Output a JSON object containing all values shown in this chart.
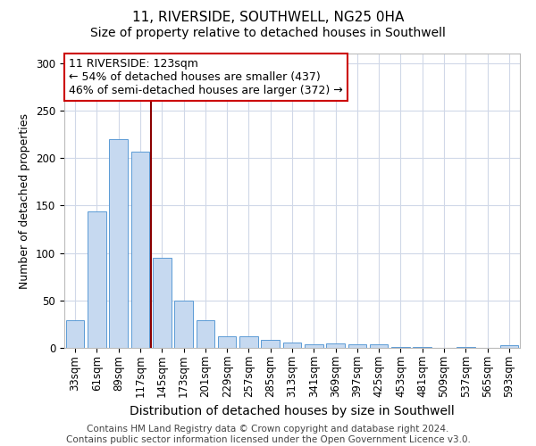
{
  "title": "11, RIVERSIDE, SOUTHWELL, NG25 0HA",
  "subtitle": "Size of property relative to detached houses in Southwell",
  "xlabel": "Distribution of detached houses by size in Southwell",
  "ylabel": "Number of detached properties",
  "categories": [
    "33sqm",
    "61sqm",
    "89sqm",
    "117sqm",
    "145sqm",
    "173sqm",
    "201sqm",
    "229sqm",
    "257sqm",
    "285sqm",
    "313sqm",
    "341sqm",
    "369sqm",
    "397sqm",
    "425sqm",
    "453sqm",
    "481sqm",
    "509sqm",
    "537sqm",
    "565sqm",
    "593sqm"
  ],
  "values": [
    29,
    144,
    220,
    207,
    95,
    50,
    29,
    12,
    12,
    8,
    6,
    4,
    5,
    4,
    4,
    1,
    1,
    0,
    1,
    0,
    3
  ],
  "bar_color": "#c6d9f0",
  "bar_edge_color": "#5b9bd5",
  "property_line_x": 3.5,
  "property_line_color": "#8b0000",
  "annotation_line1": "11 RIVERSIDE: 123sqm",
  "annotation_line2": "← 54% of detached houses are smaller (437)",
  "annotation_line3": "46% of semi-detached houses are larger (372) →",
  "annotation_box_color": "#ffffff",
  "annotation_box_edge_color": "#cc0000",
  "footnote": "Contains HM Land Registry data © Crown copyright and database right 2024.\nContains public sector information licensed under the Open Government Licence v3.0.",
  "ylim": [
    0,
    310
  ],
  "yticks": [
    0,
    50,
    100,
    150,
    200,
    250,
    300
  ],
  "background_color": "#ffffff",
  "grid_color": "#d0d8e8",
  "title_fontsize": 11,
  "subtitle_fontsize": 10,
  "xlabel_fontsize": 10,
  "ylabel_fontsize": 9,
  "tick_fontsize": 8.5,
  "annotation_fontsize": 9,
  "footnote_fontsize": 7.5
}
